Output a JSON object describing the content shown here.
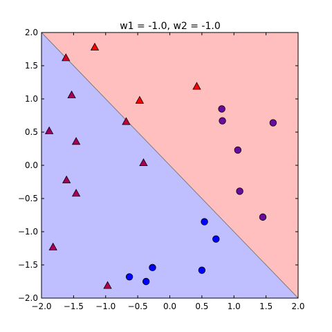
{
  "chart_data": {
    "type": "scatter",
    "title": "w1 = -1.0, w2 = -1.0",
    "xlabel": "",
    "ylabel": "",
    "xlim": [
      -2.0,
      2.0
    ],
    "ylim": [
      -2.0,
      2.0
    ],
    "x_ticks": [
      -2.0,
      -1.5,
      -1.0,
      -0.5,
      0.0,
      0.5,
      1.0,
      1.5,
      2.0
    ],
    "x_tick_labels": [
      "−2.0",
      "−1.5",
      "−1.0",
      "−0.5",
      "0.0",
      "0.5",
      "1.0",
      "1.5",
      "2.0"
    ],
    "y_ticks": [
      -2.0,
      -1.5,
      -1.0,
      -0.5,
      0.0,
      0.5,
      1.0,
      1.5,
      2.0
    ],
    "y_tick_labels": [
      "−2.0",
      "−1.5",
      "−1.0",
      "−0.5",
      "0.0",
      "0.5",
      "1.0",
      "1.5",
      "2.0"
    ],
    "grid": false,
    "decision_boundary": {
      "line": "x + y = 0",
      "region_above_color": "#ffbfbf",
      "region_below_color": "#bfbfff",
      "line_color": "#7a7a7a"
    },
    "series": [
      {
        "marker": "triangle",
        "points": [
          {
            "x": -1.17,
            "y": 1.78,
            "color": "#ff0000"
          },
          {
            "x": -1.62,
            "y": 1.62,
            "color": "#d40029"
          },
          {
            "x": -1.53,
            "y": 1.06,
            "color": "#a60059"
          },
          {
            "x": -0.47,
            "y": 0.98,
            "color": "#ff0000"
          },
          {
            "x": 0.42,
            "y": 1.19,
            "color": "#ff0000"
          },
          {
            "x": -0.68,
            "y": 0.66,
            "color": "#c30040"
          },
          {
            "x": -1.88,
            "y": 0.52,
            "color": "#9c0063"
          },
          {
            "x": -1.46,
            "y": 0.36,
            "color": "#a60059"
          },
          {
            "x": -0.41,
            "y": 0.04,
            "color": "#a60059"
          },
          {
            "x": -1.61,
            "y": -0.22,
            "color": "#a60059"
          },
          {
            "x": -1.46,
            "y": -0.42,
            "color": "#a60059"
          },
          {
            "x": -1.82,
            "y": -1.23,
            "color": "#a60059"
          },
          {
            "x": -0.97,
            "y": -1.81,
            "color": "#b3004c"
          }
        ]
      },
      {
        "marker": "circle",
        "points": [
          {
            "x": 0.81,
            "y": 0.85,
            "color": "#6a0aa0"
          },
          {
            "x": 0.82,
            "y": 0.67,
            "color": "#6a0aa0"
          },
          {
            "x": 1.61,
            "y": 0.64,
            "color": "#6a0aa0"
          },
          {
            "x": 1.06,
            "y": 0.23,
            "color": "#6a0aa0"
          },
          {
            "x": 1.09,
            "y": -0.39,
            "color": "#6a0aa0"
          },
          {
            "x": 1.45,
            "y": -0.78,
            "color": "#6a0aa0"
          },
          {
            "x": 0.54,
            "y": -0.85,
            "color": "#0000ff"
          },
          {
            "x": 0.72,
            "y": -1.11,
            "color": "#0000ff"
          },
          {
            "x": -0.27,
            "y": -1.54,
            "color": "#0000ff"
          },
          {
            "x": 0.5,
            "y": -1.58,
            "color": "#0000ff"
          },
          {
            "x": -0.63,
            "y": -1.68,
            "color": "#0000ff"
          },
          {
            "x": -0.37,
            "y": -1.75,
            "color": "#0000ff"
          }
        ]
      }
    ]
  }
}
